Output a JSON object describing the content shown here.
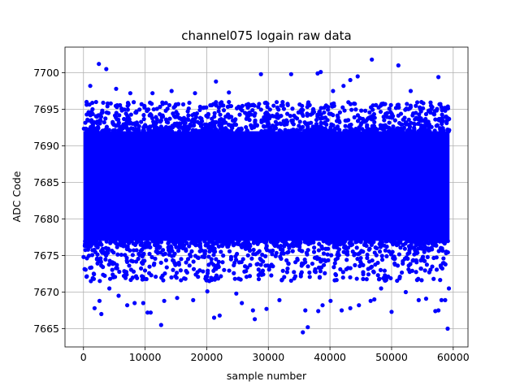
{
  "chart_data": {
    "type": "scatter",
    "title": "channel075 logain raw data",
    "xlabel": "sample number",
    "ylabel": "ADC Code",
    "xlim": [
      -3000,
      62400
    ],
    "ylim": [
      7662.5,
      7703.5
    ],
    "xticks": [
      0,
      10000,
      20000,
      30000,
      40000,
      50000,
      60000
    ],
    "yticks": [
      7665,
      7670,
      7675,
      7680,
      7685,
      7690,
      7695,
      7700
    ],
    "grid": true,
    "series": [
      {
        "color": "#0000ff",
        "dense_band": {
          "x_range": [
            0,
            59400
          ],
          "y_range": [
            7677,
            7692
          ]
        },
        "points": [
          [
            500,
            7696
          ],
          [
            1100,
            7698.2
          ],
          [
            2500,
            7701.2
          ],
          [
            3700,
            7700.5
          ],
          [
            5300,
            7697.8
          ],
          [
            7600,
            7697.2
          ],
          [
            11200,
            7697.2
          ],
          [
            14300,
            7697.5
          ],
          [
            18100,
            7697.2
          ],
          [
            21500,
            7698.8
          ],
          [
            23600,
            7697.3
          ],
          [
            28800,
            7699.8
          ],
          [
            33700,
            7699.8
          ],
          [
            38000,
            7699.9
          ],
          [
            38500,
            7700.1
          ],
          [
            40500,
            7697.5
          ],
          [
            42200,
            7698.2
          ],
          [
            43300,
            7699
          ],
          [
            44500,
            7699.5
          ],
          [
            46800,
            7701.8
          ],
          [
            51100,
            7701
          ],
          [
            53100,
            7697.5
          ],
          [
            57600,
            7699.4
          ],
          [
            1200,
            7671.5
          ],
          [
            1800,
            7667.8
          ],
          [
            2900,
            7667
          ],
          [
            2600,
            7668.8
          ],
          [
            4200,
            7670.5
          ],
          [
            5700,
            7669.5
          ],
          [
            7100,
            7668.2
          ],
          [
            8300,
            7668.5
          ],
          [
            9700,
            7668.5
          ],
          [
            10400,
            7667.2
          ],
          [
            10900,
            7667.2
          ],
          [
            12600,
            7665.5
          ],
          [
            13100,
            7668.8
          ],
          [
            15200,
            7669.2
          ],
          [
            17800,
            7668.9
          ],
          [
            20100,
            7670.1
          ],
          [
            21200,
            7666.5
          ],
          [
            22100,
            7666.8
          ],
          [
            24800,
            7669.8
          ],
          [
            25700,
            7668.5
          ],
          [
            27500,
            7667.5
          ],
          [
            29700,
            7667.7
          ],
          [
            27800,
            7666.3
          ],
          [
            31800,
            7668.9
          ],
          [
            35600,
            7664.5
          ],
          [
            36000,
            7667.5
          ],
          [
            36400,
            7665.2
          ],
          [
            38100,
            7667.4
          ],
          [
            38800,
            7668.2
          ],
          [
            40100,
            7668.8
          ],
          [
            41900,
            7667.5
          ],
          [
            43300,
            7667.8
          ],
          [
            44700,
            7668.2
          ],
          [
            46600,
            7668.8
          ],
          [
            47200,
            7669.0
          ],
          [
            48300,
            7670.5
          ],
          [
            50000,
            7667.3
          ],
          [
            52300,
            7670
          ],
          [
            54400,
            7668.9
          ],
          [
            55600,
            7669.1
          ],
          [
            57100,
            7667.4
          ],
          [
            57600,
            7667.5
          ],
          [
            58100,
            7668.9
          ],
          [
            58700,
            7668.9
          ],
          [
            59100,
            7665.0
          ],
          [
            59300,
            7670.5
          ]
        ]
      }
    ]
  }
}
